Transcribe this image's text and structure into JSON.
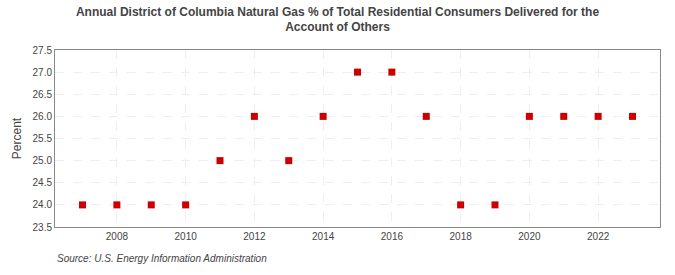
{
  "chart_data": {
    "type": "scatter",
    "title": "Annual District of Columbia Natural Gas % of Total Residential Consumers Delivered for the\nAccount of Others",
    "y_label": "Percent",
    "annotations": [
      "Source: U.S. Energy Information Administration"
    ],
    "x": [
      2007,
      2008,
      2009,
      2010,
      2011,
      2012,
      2013,
      2014,
      2015,
      2016,
      2017,
      2018,
      2019,
      2020,
      2021,
      2022,
      2023
    ],
    "values": [
      24.0,
      24.0,
      24.0,
      24.0,
      25.0,
      26.0,
      25.0,
      26.0,
      27.0,
      27.0,
      26.0,
      24.0,
      24.0,
      26.0,
      26.0,
      26.0,
      26.0
    ],
    "color": "#cc0000",
    "marker": "square",
    "xlim": [
      2006.2,
      2023.8
    ],
    "xticks": [
      2008,
      2010,
      2012,
      2014,
      2016,
      2018,
      2020,
      2022
    ],
    "ylim": [
      23.5,
      27.5
    ],
    "yticks": [
      23.5,
      {
        "value": 24.0,
        "label": "24.0"
      },
      24.5,
      {
        "value": 25.0,
        "label": "25.0"
      },
      25.5,
      {
        "value": 26.0,
        "label": "26.0"
      },
      26.5,
      {
        "value": 27.0,
        "label": "27.0"
      },
      27.5
    ],
    "grid": true
  }
}
